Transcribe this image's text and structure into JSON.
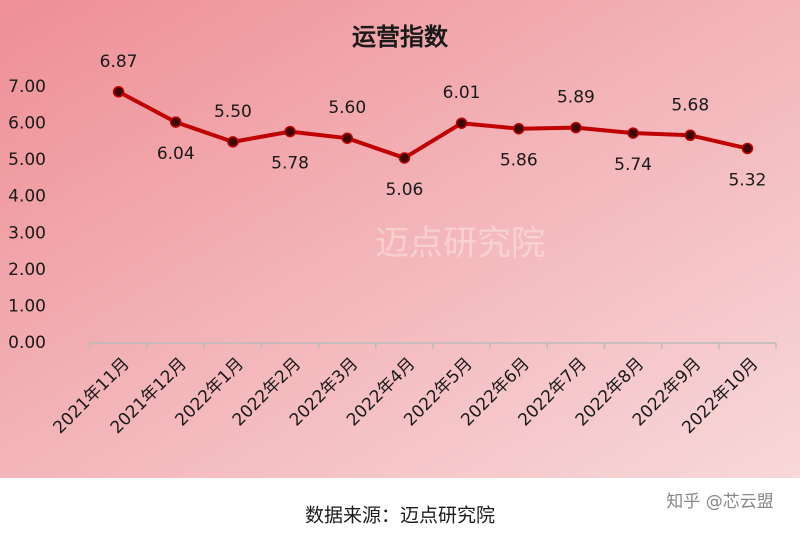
{
  "chart_data": {
    "type": "line",
    "title": "运营指数",
    "categories": [
      "2021年11月",
      "2021年12月",
      "2022年1月",
      "2022年2月",
      "2022年3月",
      "2022年4月",
      "2022年5月",
      "2022年6月",
      "2022年7月",
      "2022年8月",
      "2022年9月",
      "2022年10月"
    ],
    "series": [
      {
        "name": "运营指数",
        "color": "#c00000",
        "values": [
          6.87,
          6.04,
          5.5,
          5.78,
          5.6,
          5.06,
          6.01,
          5.86,
          5.89,
          5.74,
          5.68,
          5.32
        ],
        "value_labels": [
          "6.87",
          "6.04",
          "5.50",
          "5.78",
          "5.60",
          "5.06",
          "6.01",
          "5.86",
          "5.89",
          "5.74",
          "5.68",
          "5.32"
        ]
      }
    ],
    "ylim": [
      0,
      7
    ],
    "yticks": [
      {
        "value": 0,
        "label": "0.00"
      },
      {
        "value": 1,
        "label": "1.00"
      },
      {
        "value": 2,
        "label": "2.00"
      },
      {
        "value": 3,
        "label": "3.00"
      },
      {
        "value": 4,
        "label": "4.00"
      },
      {
        "value": 5,
        "label": "5.00"
      },
      {
        "value": 6,
        "label": "6.00"
      },
      {
        "value": 7,
        "label": "7.00"
      }
    ],
    "grid": false,
    "watermark": "迈点研究院"
  },
  "footer": {
    "source": "数据来源：迈点研究院",
    "credit": "知乎 @芯云盟"
  }
}
